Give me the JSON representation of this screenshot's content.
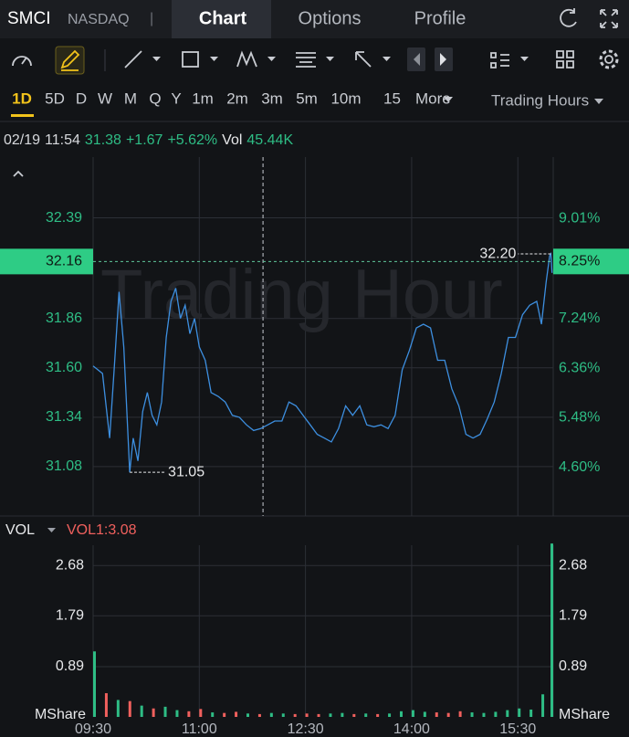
{
  "header": {
    "symbol": "SMCI",
    "exchange": "NASDAQ",
    "separator": "|",
    "tabs": [
      "Chart",
      "Options",
      "Profile"
    ]
  },
  "timeframes": [
    "1D",
    "5D",
    "D",
    "W",
    "M",
    "Q",
    "Y",
    "1m",
    "2m",
    "3m",
    "5m",
    "10m",
    "15"
  ],
  "more": "More",
  "session": "Trading Hours",
  "info": {
    "date": "02/19",
    "time": "11:54",
    "price": "31.38",
    "change": "+1.67",
    "change_pct": "+5.62%",
    "vol_label": "Vol",
    "volume": "45.44K"
  },
  "vol_panel": {
    "label": "VOL",
    "indicator": "VOL1:3.08"
  },
  "chart_data": [
    {
      "type": "line",
      "color": "#3d8fe0",
      "x": [
        "09:30",
        "09:38",
        "09:44",
        "09:48",
        "09:52",
        "09:56",
        "10:01",
        "10:04",
        "10:08",
        "10:12",
        "10:16",
        "10:20",
        "10:24",
        "10:28",
        "10:32",
        "10:36",
        "10:40",
        "10:44",
        "10:48",
        "10:52",
        "10:56",
        "11:00",
        "11:05",
        "11:10",
        "11:16",
        "11:22",
        "11:28",
        "11:34",
        "11:40",
        "11:46",
        "11:52",
        "11:58",
        "12:04",
        "12:10",
        "12:16",
        "12:22",
        "12:28",
        "12:34",
        "12:40",
        "12:46",
        "12:52",
        "12:58",
        "13:04",
        "13:10",
        "13:16",
        "13:22",
        "13:28",
        "13:34",
        "13:40",
        "13:46",
        "13:52",
        "13:58",
        "14:04",
        "14:10",
        "14:16",
        "14:22",
        "14:28",
        "14:34",
        "14:40",
        "14:46",
        "14:52",
        "14:58",
        "15:04",
        "15:10",
        "15:16",
        "15:22",
        "15:28",
        "15:34",
        "15:40",
        "15:46",
        "15:50",
        "15:54",
        "15:57",
        "15:58",
        "15:59"
      ],
      "values": [
        31.61,
        31.57,
        31.23,
        31.61,
        32.0,
        31.71,
        31.05,
        31.23,
        31.11,
        31.37,
        31.47,
        31.35,
        31.3,
        31.42,
        31.76,
        31.95,
        32.02,
        31.86,
        31.93,
        31.78,
        31.86,
        31.71,
        31.64,
        31.47,
        31.45,
        31.42,
        31.35,
        31.34,
        31.3,
        31.27,
        31.28,
        31.3,
        31.32,
        31.32,
        31.42,
        31.4,
        31.35,
        31.3,
        31.25,
        31.23,
        31.21,
        31.28,
        31.4,
        31.35,
        31.4,
        31.3,
        31.29,
        31.3,
        31.28,
        31.35,
        31.59,
        31.69,
        31.81,
        31.83,
        31.81,
        31.64,
        31.64,
        31.49,
        31.4,
        31.25,
        31.23,
        31.25,
        31.33,
        31.42,
        31.57,
        31.76,
        31.76,
        31.88,
        31.93,
        31.95,
        31.83,
        32.05,
        32.19,
        32.2,
        32.1
      ],
      "xlim": [
        "09:30",
        "16:00"
      ],
      "xticks": [
        "09:30",
        "11:00",
        "12:30",
        "14:00",
        "15:30"
      ],
      "ylim": [
        30.82,
        32.71
      ],
      "yticks": [
        31.08,
        31.34,
        {
          "value": 31.6,
          "label": "31.60"
        },
        31.86,
        32.39
      ],
      "y2lim": [
        3.74,
        10.1
      ],
      "y2ticks": [
        {
          "value": 4.6,
          "label": "4.60%"
        },
        {
          "value": 5.48,
          "label": "5.48%"
        },
        {
          "value": 6.36,
          "label": "6.36%"
        },
        {
          "value": 7.24,
          "label": "7.24%"
        },
        {
          "value": 9.01,
          "label": "9.01%"
        }
      ],
      "grid": true,
      "watermark": "Trading Hour",
      "last_price": 32.16,
      "last_change": {
        "value": 8.25,
        "label": "8.25%"
      },
      "annotations": [
        {
          "x": "15:58",
          "value": 32.2,
          "label": "32.20"
        },
        {
          "x": "10:01",
          "value": 31.05
        }
      ]
    },
    {
      "type": "bar",
      "x": [
        "09:30",
        "09:40",
        "09:50",
        "10:00",
        "10:10",
        "10:20",
        "10:30",
        "10:40",
        "10:50",
        "11:00",
        "11:10",
        "11:20",
        "11:30",
        "11:40",
        "11:50",
        "12:00",
        "12:10",
        "12:20",
        "12:30",
        "12:40",
        "12:50",
        "13:00",
        "13:10",
        "13:20",
        "13:30",
        "13:40",
        "13:50",
        "14:00",
        "14:10",
        "14:20",
        "14:30",
        "14:40",
        "14:50",
        "15:00",
        "15:10",
        "15:20",
        "15:30",
        "15:40",
        "15:50",
        "15:59"
      ],
      "values": [
        1.16,
        0.42,
        0.3,
        0.28,
        0.2,
        0.15,
        0.18,
        0.12,
        0.1,
        0.14,
        0.08,
        0.07,
        0.09,
        0.06,
        0.05,
        0.07,
        0.06,
        0.05,
        0.06,
        0.05,
        0.06,
        0.07,
        0.05,
        0.06,
        0.05,
        0.06,
        0.1,
        0.12,
        0.09,
        0.08,
        0.07,
        0.1,
        0.08,
        0.07,
        0.09,
        0.12,
        0.15,
        0.13,
        0.4,
        3.07
      ],
      "colors": [
        "#2ebd85",
        "#f0605d",
        "#2ebd85",
        "#f0605d",
        "#2ebd85",
        "#f0605d",
        "#2ebd85",
        "#2ebd85",
        "#f0605d",
        "#f0605d",
        "#2ebd85",
        "#f0605d",
        "#f0605d",
        "#2ebd85",
        "#f0605d",
        "#2ebd85",
        "#2ebd85",
        "#f0605d",
        "#f0605d",
        "#f0605d",
        "#2ebd85",
        "#2ebd85",
        "#f0605d",
        "#2ebd85",
        "#f0605d",
        "#2ebd85",
        "#2ebd85",
        "#2ebd85",
        "#2ebd85",
        "#f0605d",
        "#f0605d",
        "#f0605d",
        "#2ebd85",
        "#2ebd85",
        "#2ebd85",
        "#2ebd85",
        "#2ebd85",
        "#2ebd85",
        "#2ebd85",
        "#2ebd85"
      ],
      "xlim": [
        "09:30",
        "16:00"
      ],
      "xticks": [
        "09:30",
        "11:00",
        "12:30",
        "14:00",
        "15:30"
      ],
      "ylim": [
        0,
        3.04
      ],
      "yticks": [
        0.89,
        1.79,
        2.68
      ],
      "unit": "MShare",
      "grid": true
    }
  ]
}
